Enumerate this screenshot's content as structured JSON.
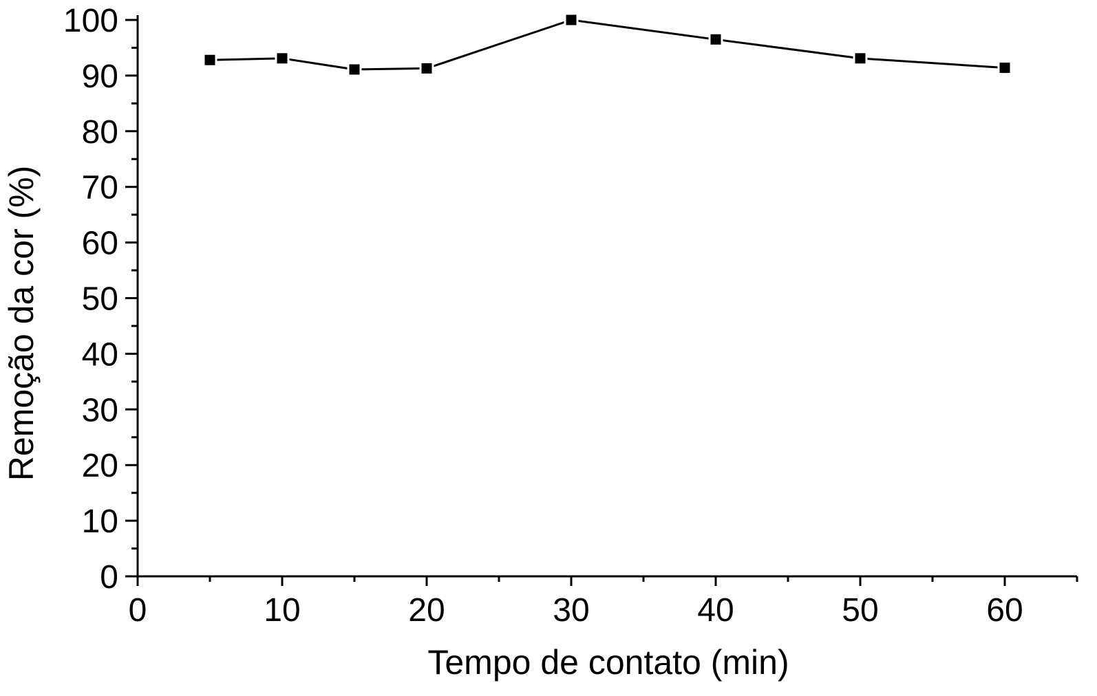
{
  "chart_data": {
    "type": "line",
    "title": "",
    "xlabel": "Tempo de contato (min)",
    "ylabel": "Remoção da cor (%)",
    "xlim": [
      0,
      65
    ],
    "ylim": [
      0,
      100
    ],
    "x_ticks": [
      "0",
      "10",
      "20",
      "30",
      "40",
      "50",
      "60"
    ],
    "y_ticks": [
      "0",
      "10",
      "20",
      "30",
      "40",
      "50",
      "60",
      "70",
      "80",
      "90",
      "100"
    ],
    "grid": false,
    "legend": "none",
    "marker": "square",
    "colors": {
      "line": "#000000",
      "marker": "#000000",
      "axis": "#000000",
      "background": "#ffffff"
    },
    "x": [
      5,
      10,
      15,
      20,
      30,
      40,
      50,
      60
    ],
    "series": [
      {
        "values": [
          92.8,
          93.1,
          91.1,
          91.3,
          100.0,
          96.5,
          93.1,
          91.4
        ]
      }
    ]
  }
}
